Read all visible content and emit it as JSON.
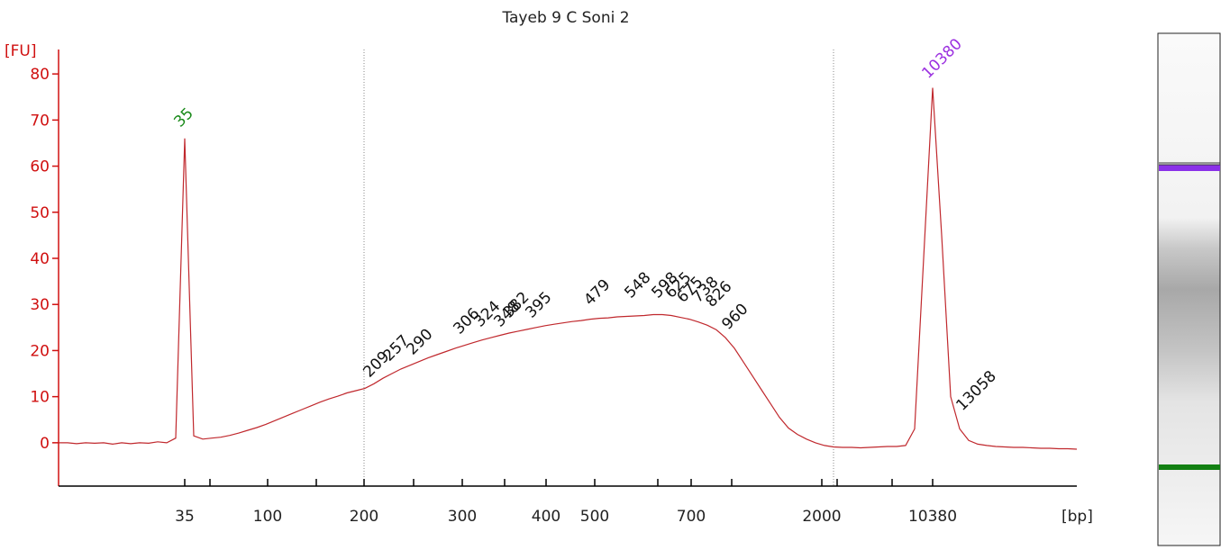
{
  "chart_data": {
    "type": "line",
    "title": "Tayeb 9 C Soni 2",
    "ylabel": "[FU]",
    "xlabel": "[bp]",
    "ylim": [
      -9.4,
      85.3
    ],
    "yticks": [
      0,
      10,
      20,
      30,
      40,
      50,
      60,
      70,
      80
    ],
    "xtick_labels": [
      "35",
      null,
      "100",
      null,
      "200",
      null,
      "300",
      null,
      "400",
      "500",
      null,
      "700",
      null,
      "2000",
      null,
      null,
      "10380"
    ],
    "series": [
      {
        "color": "#c0282d",
        "values": [
          0,
          0,
          -0.2,
          0,
          -0.1,
          0,
          -0.3,
          0,
          -0.2,
          0,
          -0.1,
          0.2,
          0,
          1,
          66,
          1.5,
          0.8,
          1,
          1.2,
          1.6,
          2.1,
          2.7,
          3.3,
          4,
          4.8,
          5.6,
          6.4,
          7.2,
          8,
          8.8,
          9.5,
          10.1,
          10.8,
          11.3,
          11.8,
          12.8,
          14,
          15,
          16,
          16.8,
          17.6,
          18.4,
          19.1,
          19.8,
          20.5,
          21.1,
          21.7,
          22.3,
          22.8,
          23.3,
          23.8,
          24.2,
          24.6,
          25,
          25.4,
          25.7,
          26,
          26.3,
          26.5,
          26.8,
          27,
          27.1,
          27.3,
          27.4,
          27.5,
          27.6,
          27.8,
          27.8,
          27.6,
          27.2,
          26.8,
          26.2,
          25.5,
          24.5,
          22.8,
          20.5,
          17.5,
          14.5,
          11.5,
          8.5,
          5.5,
          3.2,
          1.8,
          0.8,
          0,
          -0.6,
          -0.9,
          -1,
          -1,
          -1.1,
          -1,
          -0.9,
          -0.8,
          -0.8,
          -0.6,
          3,
          40,
          77,
          45,
          10,
          3,
          0.5,
          -0.3,
          -0.6,
          -0.8,
          -0.9,
          -1,
          -1,
          -1.1,
          -1.2,
          -1.2,
          -1.3,
          -1.3,
          -1.4
        ]
      }
    ],
    "annotations": [
      {
        "text": "35",
        "color": "#1a8a1a"
      },
      {
        "text": "10380",
        "color": "#9b30e0"
      },
      {
        "text": "209"
      },
      {
        "text": "257"
      },
      {
        "text": "290"
      },
      {
        "text": "306"
      },
      {
        "text": "324"
      },
      {
        "text": "348"
      },
      {
        "text": "382"
      },
      {
        "text": "395"
      },
      {
        "text": "479"
      },
      {
        "text": "548"
      },
      {
        "text": "598"
      },
      {
        "text": "625"
      },
      {
        "text": "675"
      },
      {
        "text": "738"
      },
      {
        "text": "826"
      },
      {
        "text": "960"
      },
      {
        "text": "13058"
      }
    ]
  }
}
